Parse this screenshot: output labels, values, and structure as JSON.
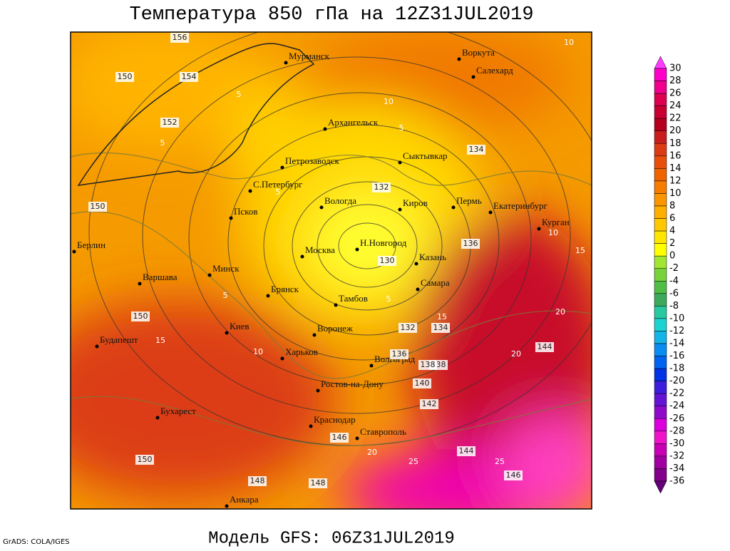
{
  "title": "Температура 850 гПа на 12Z31JUL2019",
  "footer": "Модель GFS: 06Z31JUL2019",
  "credit": "GrADS: COLA/IGES",
  "cities": [
    "Мурманск",
    "Воркута",
    "Салехард",
    "Архангельск",
    "Петрозаводск",
    "Сыктывкар",
    "С.Петербург",
    "Вологда",
    "Киров",
    "Пермь",
    "Екатеринбург",
    "Курган",
    "Псков",
    "Н.Новгород",
    "Москва",
    "Казань",
    "Берлин",
    "Варшава",
    "Минск",
    "Брянск",
    "Самара",
    "Тамбов",
    "Киев",
    "Воронеж",
    "Харьков",
    "Будапешт",
    "Волгоград",
    "Ростов-на-Дону",
    "Бухарест",
    "Краснодар",
    "Ставрополь",
    "Анкара"
  ],
  "height_labels": [
    156,
    150,
    154,
    152,
    150,
    132,
    130,
    136,
    134,
    138,
    132,
    134,
    136,
    138,
    140,
    142,
    146,
    144,
    144,
    146,
    148,
    148,
    150,
    150
  ],
  "temp_labels": [
    5,
    5,
    10,
    5,
    5,
    5,
    10,
    5,
    15,
    15,
    20,
    20,
    25,
    25,
    20,
    15,
    10,
    10
  ],
  "colorbar": {
    "levels": [
      30,
      28,
      26,
      24,
      22,
      20,
      18,
      16,
      14,
      12,
      10,
      8,
      6,
      4,
      2,
      0,
      -2,
      -4,
      -6,
      -8,
      -10,
      -12,
      -14,
      -16,
      -18,
      -20,
      -22,
      -24,
      -26,
      -28,
      -30,
      -32,
      -34,
      -36
    ],
    "colors": [
      "#ff3cff",
      "#ff00c8",
      "#f0008c",
      "#dc0050",
      "#c80032",
      "#b4001e",
      "#c81e1e",
      "#dc3c14",
      "#e6500a",
      "#f06400",
      "#f57d00",
      "#fa9600",
      "#ffaf00",
      "#ffc800",
      "#ffe600",
      "#ffff00",
      "#a0e632",
      "#78d23c",
      "#50be46",
      "#3caa5a",
      "#28c8a0",
      "#1ed2d2",
      "#14b4e6",
      "#0a8cf0",
      "#0064f0",
      "#0032e6",
      "#3c1edc",
      "#6414d2",
      "#8c0ac8",
      "#dc00dc",
      "#f014c8",
      "#c800b4",
      "#a000a0",
      "#82008c",
      "#640078"
    ]
  }
}
